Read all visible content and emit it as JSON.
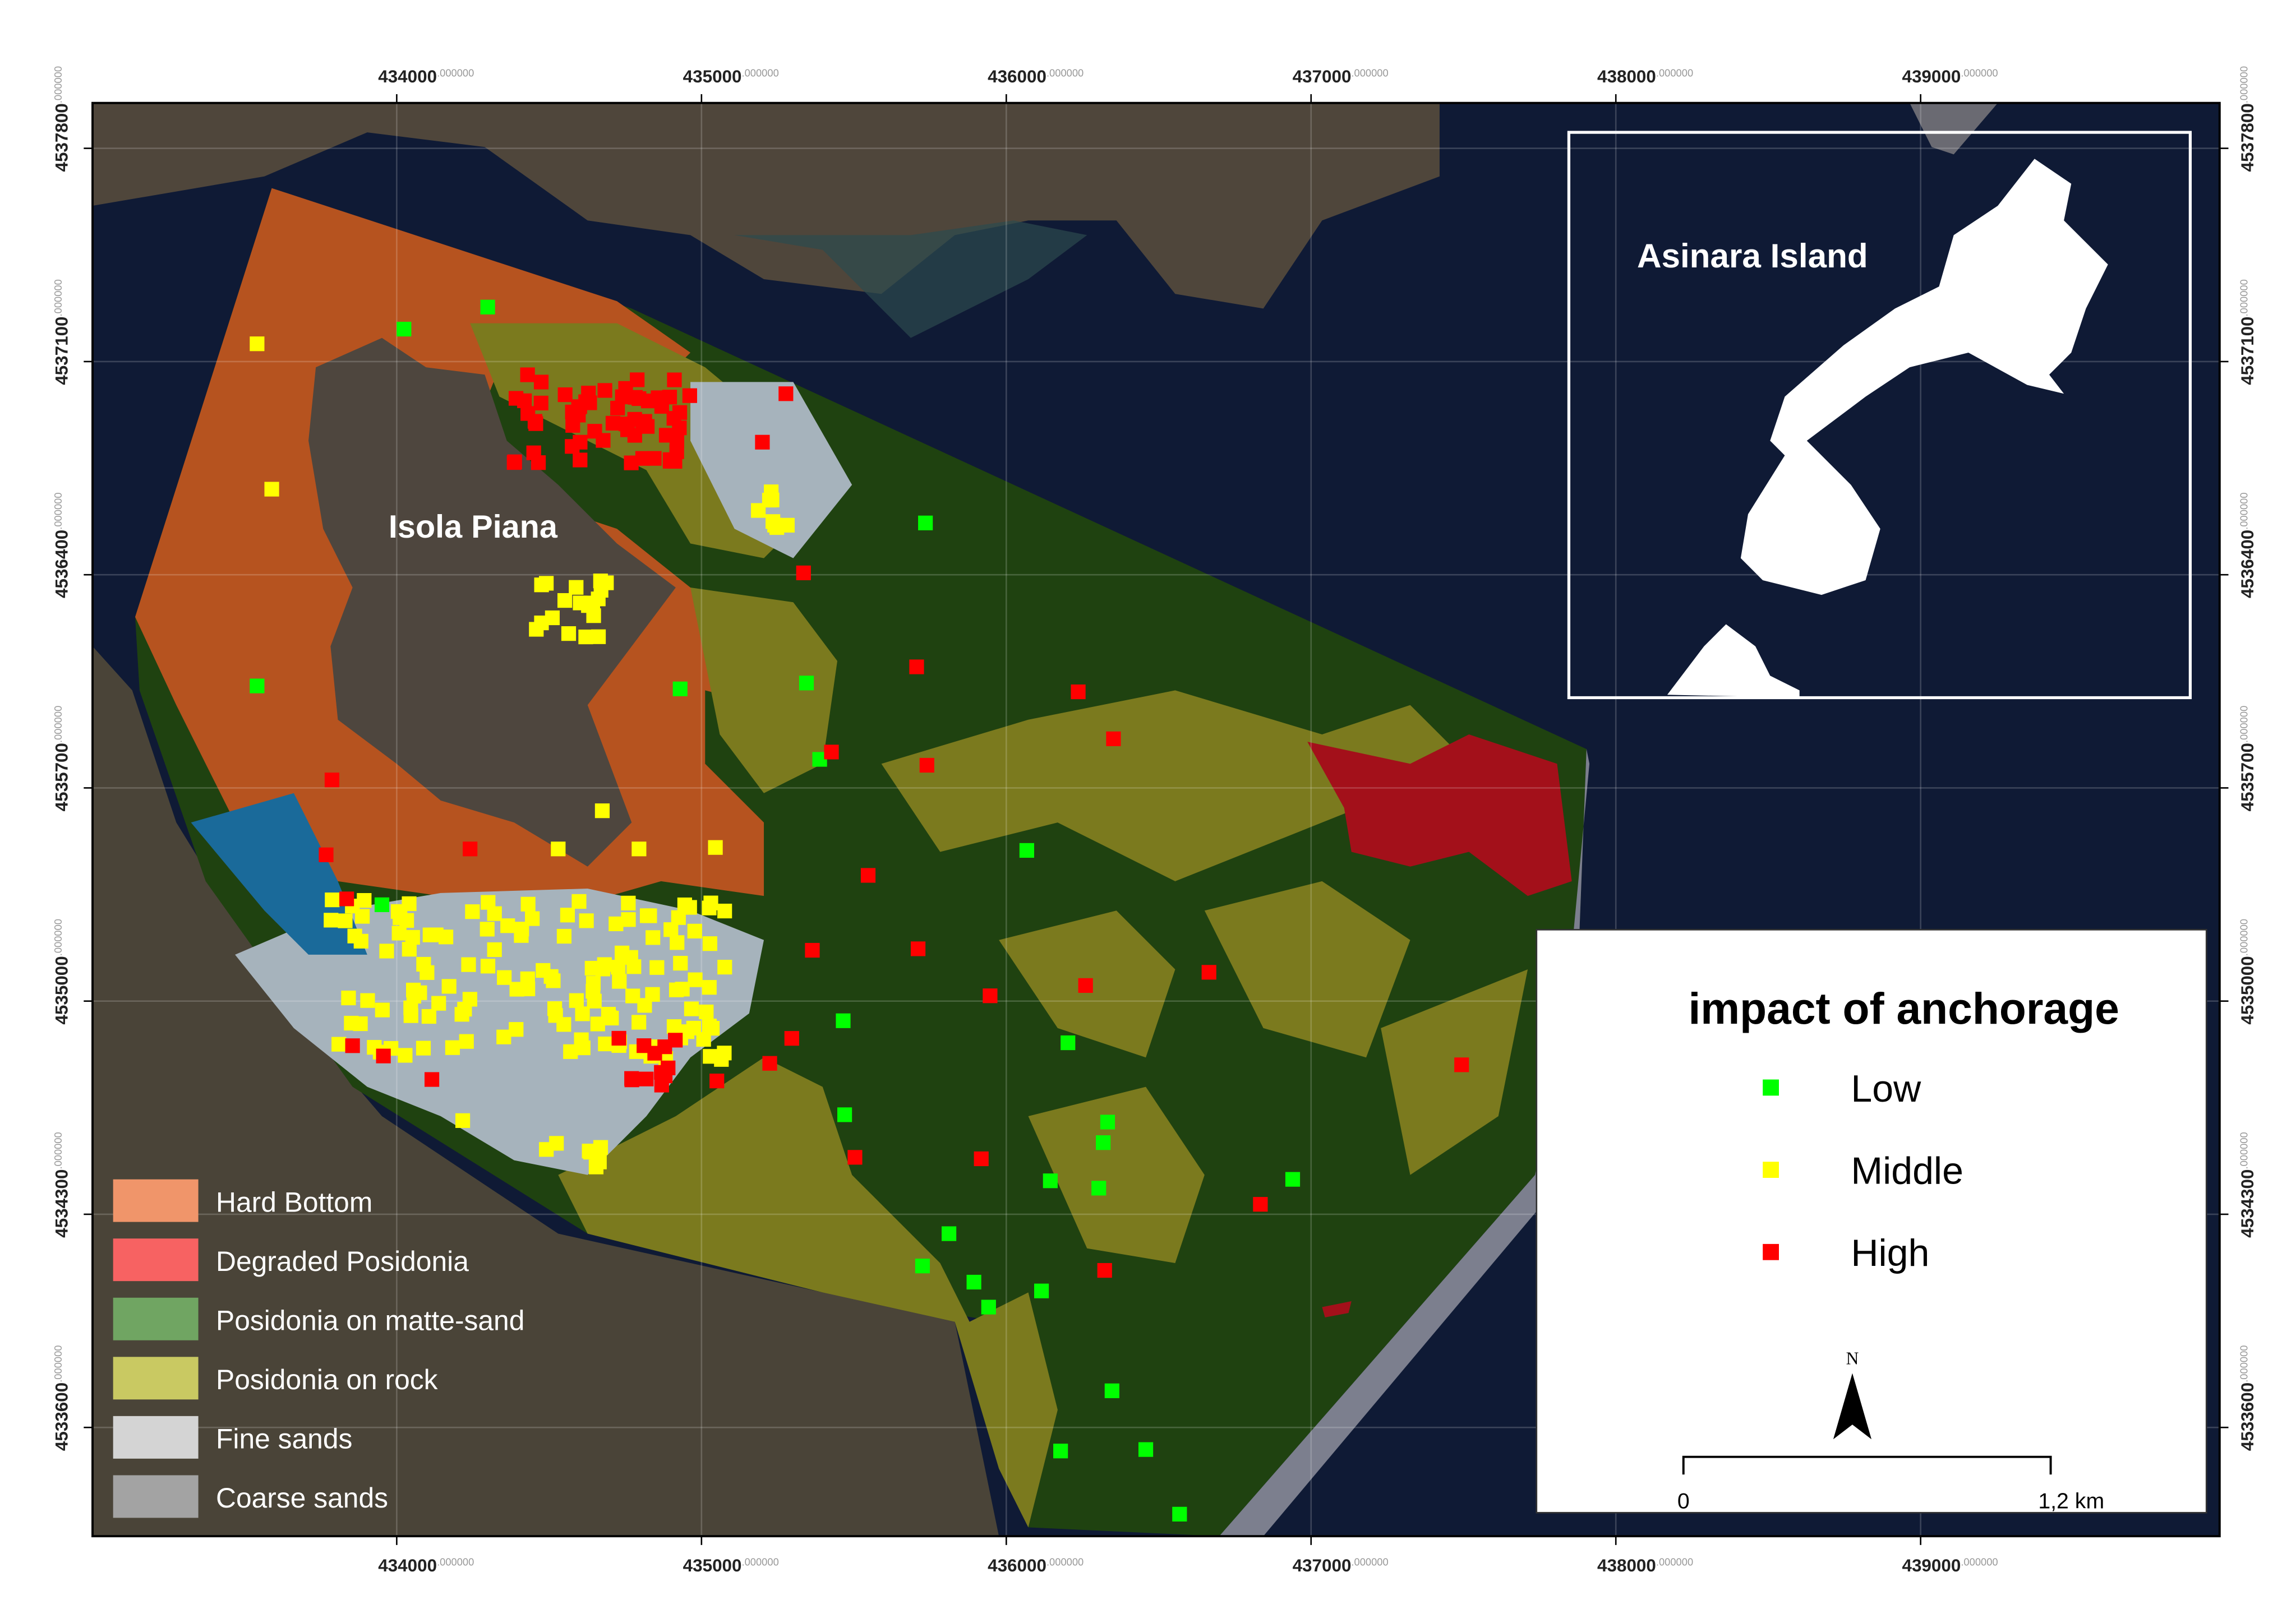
{
  "map": {
    "xlim": [
      433002,
      439981
    ],
    "ylim": [
      4533243,
      4537949
    ],
    "xticks": [
      434000,
      435000,
      436000,
      437000,
      438000,
      439000
    ],
    "yticks": [
      4533600,
      4534300,
      4535000,
      4535700,
      4536400,
      4537100,
      4537800
    ],
    "tick_suffix": ".000000",
    "island_label": "Isola Piana"
  },
  "inset": {
    "label": "Asinara Island"
  },
  "habitat_legend": [
    {
      "name": "Hard Bottom",
      "color": "#f0956a"
    },
    {
      "name": "Degraded Posidonia",
      "color": "#f76262"
    },
    {
      "name": "Posidonia on matte-sand",
      "color": "#70a562"
    },
    {
      "name": "Posidonia on rock",
      "color": "#c9c962"
    },
    {
      "name": "Fine sands",
      "color": "#d4d4d4"
    },
    {
      "name": "Coarse sands",
      "color": "#a3a3a3"
    }
  ],
  "impact_legend": {
    "title": "impact of anchorage",
    "items": [
      {
        "name": "Low",
        "color": "#00ff00"
      },
      {
        "name": "Middle",
        "color": "#ffff00"
      },
      {
        "name": "High",
        "color": "#ff0000"
      }
    ]
  },
  "scale_bar": {
    "start": "0",
    "end": "1,2 km"
  },
  "north": "N"
}
